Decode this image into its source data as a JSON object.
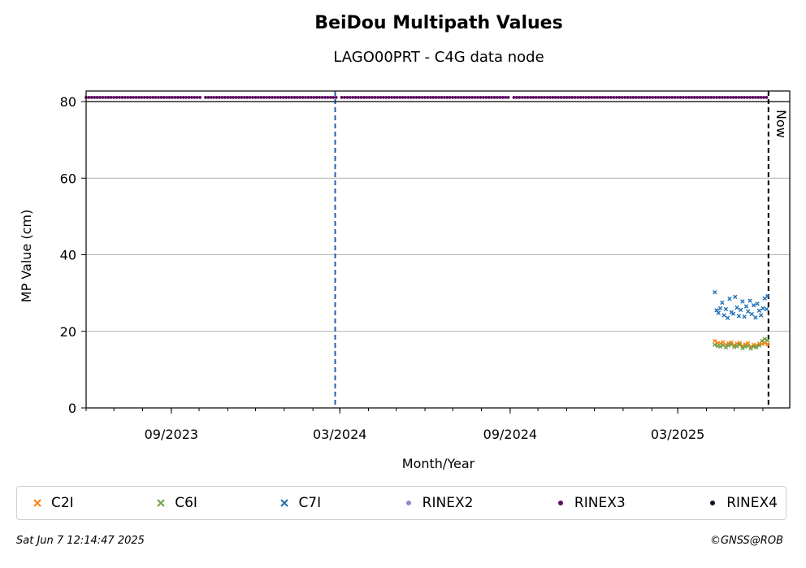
{
  "chart_data": {
    "type": "scatter",
    "title": "BeiDou Multipath Values",
    "subtitle": "LAGO00PRT - C4G data node",
    "xlabel": "Month/Year",
    "ylabel": "MP Value (cm)",
    "ylim": [
      0,
      80
    ],
    "xlim": [
      "2023-06-01",
      "2025-06-30"
    ],
    "yticks": [
      "0",
      "20",
      "40",
      "60",
      "80"
    ],
    "xticks": [
      {
        "label": "09/2023",
        "date": "2023-09-01"
      },
      {
        "label": "03/2024",
        "date": "2024-03-01"
      },
      {
        "label": "09/2024",
        "date": "2024-09-01"
      },
      {
        "label": "03/2025",
        "date": "2025-03-01"
      }
    ],
    "grid": "horizontal",
    "now_label": "Now",
    "now_date": "2025-06-07",
    "event_line_date": "2024-02-25",
    "series": [
      {
        "name": "C2I",
        "marker": "x",
        "color": "#ff7f0e",
        "x": [
          "2025-04-10",
          "2025-04-13",
          "2025-04-16",
          "2025-04-19",
          "2025-04-22",
          "2025-04-25",
          "2025-04-28",
          "2025-05-01",
          "2025-05-04",
          "2025-05-07",
          "2025-05-10",
          "2025-05-13",
          "2025-05-16",
          "2025-05-19",
          "2025-05-22",
          "2025-05-25",
          "2025-05-28",
          "2025-05-31",
          "2025-06-03",
          "2025-06-06"
        ],
        "values": [
          17.5,
          17.0,
          16.8,
          17.2,
          16.5,
          16.9,
          17.1,
          16.4,
          16.8,
          17.0,
          16.2,
          16.6,
          16.9,
          16.0,
          16.5,
          16.3,
          16.8,
          16.7,
          17.0,
          16.6
        ]
      },
      {
        "name": "C6I",
        "marker": "x",
        "color": "#6ea046",
        "x": [
          "2025-04-10",
          "2025-04-13",
          "2025-04-16",
          "2025-04-19",
          "2025-04-22",
          "2025-04-25",
          "2025-04-28",
          "2025-05-01",
          "2025-05-04",
          "2025-05-07",
          "2025-05-10",
          "2025-05-13",
          "2025-05-16",
          "2025-05-19",
          "2025-05-22",
          "2025-05-25",
          "2025-05-28",
          "2025-05-31",
          "2025-06-03",
          "2025-06-06"
        ],
        "values": [
          16.5,
          16.2,
          16.0,
          16.4,
          15.8,
          16.3,
          16.6,
          15.9,
          16.1,
          16.5,
          15.6,
          16.0,
          16.2,
          15.5,
          16.0,
          15.8,
          16.3,
          17.5,
          18.0,
          17.6
        ]
      },
      {
        "name": "C7I",
        "marker": "x",
        "color": "#1f6fb4",
        "x": [
          "2025-04-10",
          "2025-04-12",
          "2025-04-14",
          "2025-04-16",
          "2025-04-18",
          "2025-04-20",
          "2025-04-22",
          "2025-04-24",
          "2025-04-26",
          "2025-04-28",
          "2025-04-30",
          "2025-05-02",
          "2025-05-04",
          "2025-05-06",
          "2025-05-08",
          "2025-05-10",
          "2025-05-12",
          "2025-05-14",
          "2025-05-16",
          "2025-05-18",
          "2025-05-20",
          "2025-05-22",
          "2025-05-24",
          "2025-05-26",
          "2025-05-28",
          "2025-05-30",
          "2025-06-01",
          "2025-06-03",
          "2025-06-05",
          "2025-06-06"
        ],
        "values": [
          30.2,
          25.5,
          24.8,
          26.0,
          27.5,
          24.2,
          25.8,
          23.5,
          28.5,
          25.0,
          24.6,
          29.0,
          26.2,
          24.0,
          25.6,
          27.8,
          23.8,
          26.5,
          25.2,
          28.0,
          24.5,
          26.8,
          23.6,
          27.2,
          25.4,
          24.2,
          26.0,
          28.6,
          25.8,
          29.2
        ]
      },
      {
        "name": "RINEX2",
        "marker": "dot",
        "color": "#8c88c8",
        "x": [],
        "values": []
      },
      {
        "name": "RINEX3",
        "marker": "dot",
        "color": "#5e0e63",
        "row_value": 81.5,
        "x_start": "2023-06-01",
        "x_end": "2025-06-06",
        "gaps": [
          "2023-10-05",
          "2024-02-28",
          "2024-09-03"
        ]
      },
      {
        "name": "RINEX4",
        "marker": "dot",
        "color": "#1a0a22",
        "x": [],
        "values": []
      }
    ]
  },
  "footer": {
    "timestamp": "Sat Jun  7 12:14:47 2025",
    "credit": "©GNSS@ROB"
  }
}
